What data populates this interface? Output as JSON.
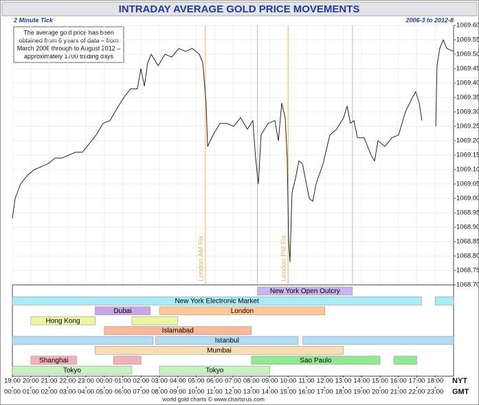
{
  "chart_data": {
    "type": "line",
    "title": "INTRADAY AVERAGE GOLD PRICE MOVEMENTS",
    "subtitle_left": "2 Minute Tick",
    "subtitle_right": "2006-3 to 2012-8",
    "annotation": [
      "The average gold price has been",
      "obtained from 6 years of data – from",
      "March 2006 through to August 2012 –",
      "approximately 1700 trading days"
    ],
    "footer": "world gold charts © www.chartsrus.com",
    "color": "#222222",
    "grid": true,
    "x": [
      0,
      0.15,
      0.45,
      0.82,
      1.2,
      1.57,
      1.94,
      2.32,
      2.69,
      3.07,
      3.44,
      3.81,
      4.19,
      4.56,
      4.93,
      5.31,
      5.68,
      6.06,
      6.43,
      6.8,
      6.99,
      7.18,
      7.36,
      7.55,
      7.93,
      8.3,
      8.67,
      9.05,
      9.42,
      9.79,
      10.17,
      10.36,
      10.54,
      10.62,
      10.92,
      11.29,
      11.66,
      12.04,
      12.41,
      12.79,
      13.08,
      13.23,
      13.38,
      13.53,
      13.91,
      14.28,
      14.47,
      14.65,
      14.84,
      14.95,
      15.03,
      15.1,
      15.21,
      15.4,
      15.59,
      15.78,
      16.15,
      16.34,
      16.52,
      16.9,
      17.27,
      17.64,
      18.02,
      18.21,
      18.39,
      18.58,
      18.77,
      19.14,
      19.51,
      19.7,
      19.89,
      20.26,
      20.64,
      21.01,
      21.38,
      21.76,
      21.94,
      22.13,
      22.28,
      null,
      23.03,
      23.1,
      23.25,
      23.44,
      23.63,
      24
    ],
    "values": [
      1068.93,
      1069.0,
      1069.05,
      1069.08,
      1069.1,
      1069.11,
      1069.12,
      1069.14,
      1069.14,
      1069.15,
      1069.16,
      1069.16,
      1069.19,
      1069.22,
      1069.26,
      1069.27,
      1069.31,
      1069.35,
      1069.38,
      1069.38,
      1069.45,
      1069.39,
      1069.47,
      1069.5,
      1069.46,
      1069.5,
      1069.49,
      1069.52,
      1069.51,
      1069.52,
      1069.5,
      1069.47,
      1069.33,
      1069.18,
      1069.22,
      1069.26,
      1069.26,
      1069.25,
      1069.28,
      1069.24,
      1069.27,
      1069.14,
      1069.05,
      1069.22,
      1069.26,
      1069.27,
      1069.2,
      1069.33,
      1069.28,
      1069.14,
      1068.85,
      1068.78,
      1069.02,
      1069.07,
      1069.13,
      1069.12,
      1069.0,
      1068.99,
      1069.05,
      1069.12,
      1069.22,
      1069.24,
      1069.28,
      1069.32,
      1069.26,
      1069.27,
      1069.21,
      1069.21,
      1069.15,
      1069.13,
      1069.2,
      1069.18,
      1069.21,
      1069.22,
      1069.3,
      1069.35,
      1069.37,
      1069.33,
      1069.27,
      null,
      1069.25,
      1069.46,
      1069.52,
      1069.55,
      1069.52,
      1069.51
    ],
    "xlim": [
      0,
      24
    ],
    "ylim": [
      1068.7,
      1069.6
    ],
    "yticks": [
      {
        "value": 1069.6,
        "label": "1069.60"
      },
      {
        "value": 1069.55,
        "label": "1069.55"
      },
      {
        "value": 1069.5,
        "label": "1069.50"
      },
      {
        "value": 1069.45,
        "label": "1069.45"
      },
      {
        "value": 1069.4,
        "label": "1069.40"
      },
      {
        "value": 1069.35,
        "label": "1069.35"
      },
      {
        "value": 1069.3,
        "label": "1069.30"
      },
      {
        "value": 1069.25,
        "label": "1069.25"
      },
      {
        "value": 1069.2,
        "label": "1069.20"
      },
      {
        "value": 1069.15,
        "label": "1069.15"
      },
      {
        "value": 1069.1,
        "label": "1069.10"
      },
      {
        "value": 1069.05,
        "label": "1069.05"
      },
      {
        "value": 1069,
        "label": "1069.00"
      },
      {
        "value": 1068.95,
        "label": "1068.95"
      },
      {
        "value": 1068.9,
        "label": "1068.90"
      },
      {
        "value": 1068.85,
        "label": "1068.85"
      },
      {
        "value": 1068.8,
        "label": "1068.80"
      },
      {
        "value": 1068.75,
        "label": "1068.75"
      },
      {
        "value": 1068.7,
        "label": "1068.70"
      }
    ],
    "xaxis_label": "NYT",
    "xticks": [
      {
        "value": 0,
        "label": "19:00"
      },
      {
        "value": 1,
        "label": "20:00"
      },
      {
        "value": 2,
        "label": "21:00"
      },
      {
        "value": 3,
        "label": "22:00"
      },
      {
        "value": 4,
        "label": "23:00"
      },
      {
        "value": 5,
        "label": "00:00"
      },
      {
        "value": 6,
        "label": "01:00"
      },
      {
        "value": 7,
        "label": "02:00"
      },
      {
        "value": 8,
        "label": "03:00"
      },
      {
        "value": 9,
        "label": "04:00"
      },
      {
        "value": 10,
        "label": "05:00"
      },
      {
        "value": 11,
        "label": "06:00"
      },
      {
        "value": 12,
        "label": "07:00"
      },
      {
        "value": 13,
        "label": "08:00"
      },
      {
        "value": 14,
        "label": "09:00"
      },
      {
        "value": 15,
        "label": "10:00"
      },
      {
        "value": 16,
        "label": "11:00"
      },
      {
        "value": 17,
        "label": "12:00"
      },
      {
        "value": 18,
        "label": "13:00"
      },
      {
        "value": 19,
        "label": "14:00"
      },
      {
        "value": 20,
        "label": "15:00"
      },
      {
        "value": 21,
        "label": "16:00"
      },
      {
        "value": 22,
        "label": "17:00"
      },
      {
        "value": 23,
        "label": "18:00"
      }
    ],
    "x2axis_label": "GMT",
    "x2ticks": [
      {
        "value": 0,
        "label": "00:00"
      },
      {
        "value": 1,
        "label": "01:00"
      },
      {
        "value": 2,
        "label": "02:00"
      },
      {
        "value": 3,
        "label": "03:00"
      },
      {
        "value": 4,
        "label": "04:00"
      },
      {
        "value": 5,
        "label": "05:00"
      },
      {
        "value": 6,
        "label": "06:00"
      },
      {
        "value": 7,
        "label": "07:00"
      },
      {
        "value": 8,
        "label": "08:00"
      },
      {
        "value": 9,
        "label": "09:00"
      },
      {
        "value": 10,
        "label": "10:00"
      },
      {
        "value": 11,
        "label": "11:00"
      },
      {
        "value": 12,
        "label": "12:00"
      },
      {
        "value": 13,
        "label": "13:00"
      },
      {
        "value": 14,
        "label": "14:00"
      },
      {
        "value": 15,
        "label": "15:00"
      },
      {
        "value": 16,
        "label": "16:00"
      },
      {
        "value": 17,
        "label": "17:00"
      },
      {
        "value": 18,
        "label": "18:00"
      },
      {
        "value": 19,
        "label": "19:00"
      },
      {
        "value": 20,
        "label": "20:00"
      },
      {
        "value": 21,
        "label": "21:00"
      },
      {
        "value": 22,
        "label": "22:00"
      },
      {
        "value": 23,
        "label": "23:00"
      }
    ],
    "events": [
      {
        "name": "London AM Fix",
        "x": 10.5,
        "color": "#f4b060"
      },
      {
        "name": "London PM Fix",
        "x": 15,
        "color": "#f4b060"
      }
    ],
    "sessions": [
      {
        "name": "New York Open Outcry",
        "color": "#c8b4ec",
        "spans": [
          [
            13.33,
            18.5
          ]
        ],
        "labeled": [
          0
        ]
      },
      {
        "name": "New York Electronic Market",
        "color": "#a8ecf8",
        "spans": [
          [
            0,
            22.25
          ],
          [
            23,
            24
          ]
        ],
        "labeled": [
          0
        ]
      },
      {
        "name": "Dubai",
        "color": "#c9a6e8",
        "spans": [
          [
            4.5,
            7.5
          ]
        ],
        "labeled": [
          0
        ]
      },
      {
        "name": "London",
        "color": "#fcc89a",
        "spans": [
          [
            8,
            17
          ]
        ],
        "labeled": [
          0
        ]
      },
      {
        "name": "Hong Kong",
        "color": "#eef5a0",
        "spans": [
          [
            1,
            4.5
          ],
          [
            6.5,
            9
          ]
        ],
        "labeled": [
          0
        ]
      },
      {
        "name": "Islamabad",
        "color": "#f8b89a",
        "spans": [
          [
            5,
            13
          ]
        ],
        "labeled": [
          0
        ]
      },
      {
        "name": "Istanbul",
        "color": "#b4dcf4",
        "spans": [
          [
            0,
            7.65
          ],
          [
            7.8,
            15.55
          ],
          [
            15.8,
            24
          ]
        ],
        "labeled": [
          1
        ]
      },
      {
        "name": "Mumbai",
        "color": "#f6deb2",
        "spans": [
          [
            4.5,
            18
          ]
        ],
        "labeled": [
          0
        ]
      },
      {
        "name": "Shanghai",
        "color": "#f4b0b8",
        "spans": [
          [
            1,
            3.5
          ],
          [
            5.5,
            7
          ]
        ],
        "labeled": [
          0
        ]
      },
      {
        "name": "Sao Paulo",
        "color": "#90e890",
        "spans": [
          [
            13,
            20
          ],
          [
            20.75,
            22
          ]
        ],
        "labeled": [
          0
        ]
      },
      {
        "name": "Tokyo",
        "color": "#c8f0c0",
        "spans": [
          [
            0,
            6.5
          ],
          [
            8,
            14
          ]
        ],
        "labeled": [
          0,
          1
        ]
      }
    ],
    "session_rows": [
      0,
      1,
      2,
      2,
      3,
      4,
      5,
      6,
      7,
      7,
      8
    ]
  }
}
